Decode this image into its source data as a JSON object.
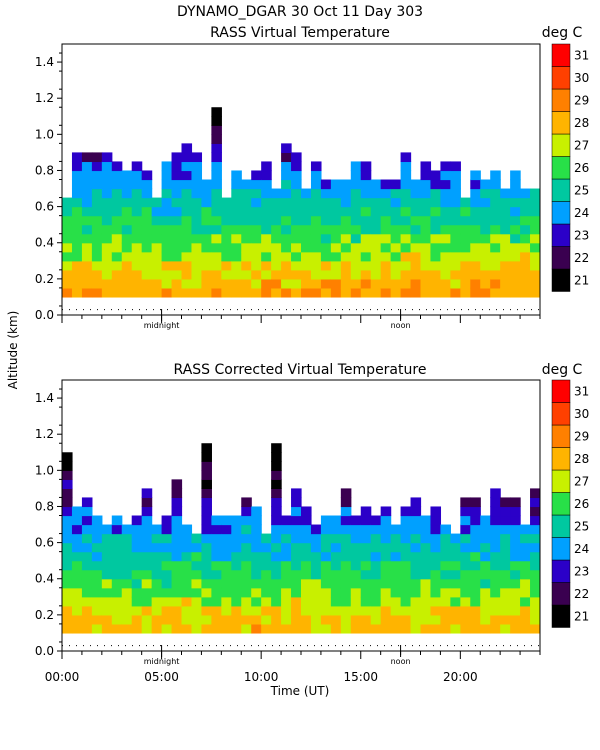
{
  "header": {
    "title": "DYNAMO_DGAR  30 Oct 11 Day 303"
  },
  "y_axis_label": "Altitude (km)",
  "x_axis_label": "Time (UT)",
  "colorbar": {
    "unit": "deg C",
    "levels": [
      21,
      22,
      23,
      24,
      25,
      26,
      27,
      28,
      29,
      30,
      31
    ],
    "colors": [
      "#000000",
      "#3a0050",
      "#2b00c8",
      "#00a0ff",
      "#00c8a0",
      "#28e048",
      "#c8f000",
      "#ffb400",
      "#ff8000",
      "#ff4000",
      "#ff0000"
    ]
  },
  "chart_data": [
    {
      "type": "heatmap",
      "title": "RASS Virtual Temperature",
      "unit": "deg C",
      "ylim": [
        0.0,
        1.5
      ],
      "y_ticks": [
        "0.0",
        "0.2",
        "0.4",
        "0.6",
        "0.8",
        "1.0",
        "1.2",
        "1.4"
      ],
      "xlim": [
        0,
        24
      ],
      "x_tick_labels": [],
      "day_markers": [
        "midnight",
        "noon"
      ],
      "z_range": [
        21,
        31
      ],
      "description_of_field": "temperature decreasing with altitude from ~29 deg C near 0.1 km to ~23 deg C near 0.9 km; data gaps above ~0.7 km"
    },
    {
      "type": "heatmap",
      "title": "RASS Corrected Virtual Temperature",
      "unit": "deg C",
      "ylim": [
        0.0,
        1.5
      ],
      "y_ticks": [
        "0.0",
        "0.2",
        "0.4",
        "0.6",
        "0.8",
        "1.0",
        "1.2",
        "1.4"
      ],
      "xlim": [
        0,
        24
      ],
      "x_tick_labels": [
        "00:00",
        "05:00",
        "10:00",
        "15:00",
        "20:00"
      ],
      "day_markers": [
        "midnight",
        "noon"
      ],
      "z_range": [
        21,
        31
      ],
      "description_of_field": "temperature decreasing with altitude from ~29 deg C near 0.1 km to ~22 deg C near 0.9 km; data gaps above ~0.7 km"
    }
  ]
}
